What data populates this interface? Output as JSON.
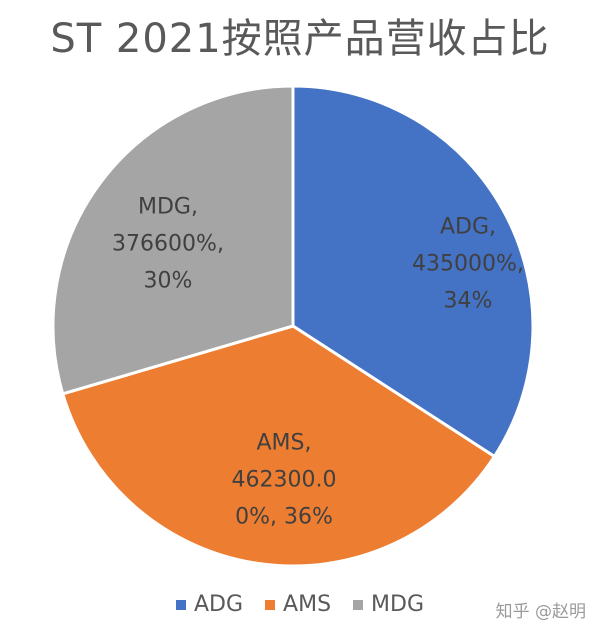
{
  "title": "ST 2021按照产品营收占比",
  "watermark": "知乎 @赵明",
  "chart_data": {
    "type": "pie",
    "title": "ST 2021按照产品营收占比",
    "categories": [
      "ADG",
      "AMS",
      "MDG"
    ],
    "values": [
      435000,
      462300,
      376600
    ],
    "percentages": [
      34,
      36,
      30
    ],
    "colors": [
      "#4472C4",
      "#ED7D31",
      "#A5A5A5"
    ],
    "labels": [
      [
        "ADG,",
        "435000%,",
        "34%"
      ],
      [
        "AMS,",
        "462300.0",
        "0%, 36%"
      ],
      [
        "MDG,",
        "376600%,",
        "30%"
      ]
    ],
    "legend": {
      "position": "bottom",
      "items": [
        "ADG",
        "AMS",
        "MDG"
      ]
    }
  }
}
